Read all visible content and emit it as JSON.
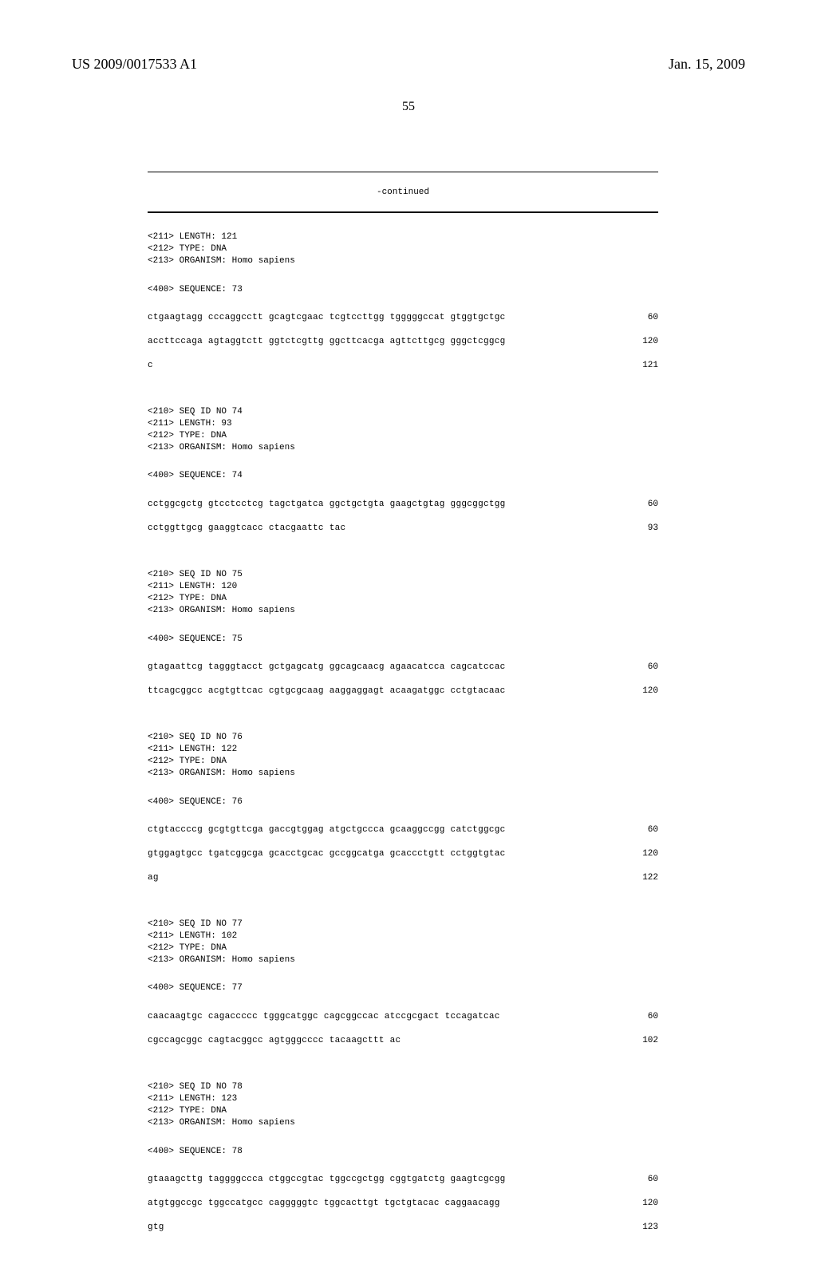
{
  "header": {
    "publication_number": "US 2009/0017533 A1",
    "publication_date": "Jan. 15, 2009"
  },
  "page_number": "55",
  "continued_label": "-continued",
  "sequences": [
    {
      "preheader": [
        "<211> LENGTH: 121",
        "<212> TYPE: DNA",
        "<213> ORGANISM: Homo sapiens"
      ],
      "seq_label": "<400> SEQUENCE: 73",
      "lines": [
        {
          "text": "ctgaagtagg cccaggcctt gcagtcgaac tcgtccttgg tgggggccat gtggtgctgc",
          "num": "60"
        },
        {
          "text": "accttccaga agtaggtctt ggtctcgttg ggcttcacga agttcttgcg gggctcggcg",
          "num": "120"
        },
        {
          "text": "c",
          "num": "121"
        }
      ]
    },
    {
      "header": [
        "<210> SEQ ID NO 74",
        "<211> LENGTH: 93",
        "<212> TYPE: DNA",
        "<213> ORGANISM: Homo sapiens"
      ],
      "seq_label": "<400> SEQUENCE: 74",
      "lines": [
        {
          "text": "cctggcgctg gtcctcctcg tagctgatca ggctgctgta gaagctgtag gggcggctgg",
          "num": "60"
        },
        {
          "text": "cctggttgcg gaaggtcacc ctacgaattc tac",
          "num": "93"
        }
      ]
    },
    {
      "header": [
        "<210> SEQ ID NO 75",
        "<211> LENGTH: 120",
        "<212> TYPE: DNA",
        "<213> ORGANISM: Homo sapiens"
      ],
      "seq_label": "<400> SEQUENCE: 75",
      "lines": [
        {
          "text": "gtagaattcg tagggtacct gctgagcatg ggcagcaacg agaacatcca cagcatccac",
          "num": "60"
        },
        {
          "text": "ttcagcggcc acgtgttcac cgtgcgcaag aaggaggagt acaagatggc cctgtacaac",
          "num": "120"
        }
      ]
    },
    {
      "header": [
        "<210> SEQ ID NO 76",
        "<211> LENGTH: 122",
        "<212> TYPE: DNA",
        "<213> ORGANISM: Homo sapiens"
      ],
      "seq_label": "<400> SEQUENCE: 76",
      "lines": [
        {
          "text": "ctgtaccccg gcgtgttcga gaccgtggag atgctgccca gcaaggccgg catctggcgc",
          "num": "60"
        },
        {
          "text": "gtggagtgcc tgatcggcga gcacctgcac gccggcatga gcaccctgtt cctggtgtac",
          "num": "120"
        },
        {
          "text": "ag",
          "num": "122"
        }
      ]
    },
    {
      "header": [
        "<210> SEQ ID NO 77",
        "<211> LENGTH: 102",
        "<212> TYPE: DNA",
        "<213> ORGANISM: Homo sapiens"
      ],
      "seq_label": "<400> SEQUENCE: 77",
      "lines": [
        {
          "text": "caacaagtgc cagaccccc tgggcatggc cagcggccac atccgcgact tccagatcac",
          "num": "60"
        },
        {
          "text": "cgccagcggc cagtacggcc agtgggcccc tacaagcttt ac",
          "num": "102"
        }
      ]
    },
    {
      "header": [
        "<210> SEQ ID NO 78",
        "<211> LENGTH: 123",
        "<212> TYPE: DNA",
        "<213> ORGANISM: Homo sapiens"
      ],
      "seq_label": "<400> SEQUENCE: 78",
      "lines": [
        {
          "text": "gtaaagcttg taggggccca ctggccgtac tggccgctgg cggtgatctg gaagtcgcgg",
          "num": "60"
        },
        {
          "text": "atgtggccgc tggccatgcc cagggggtc tggcacttgt tgctgtacac caggaacagg",
          "num": "120"
        },
        {
          "text": "gtg",
          "num": "123"
        }
      ]
    }
  ]
}
